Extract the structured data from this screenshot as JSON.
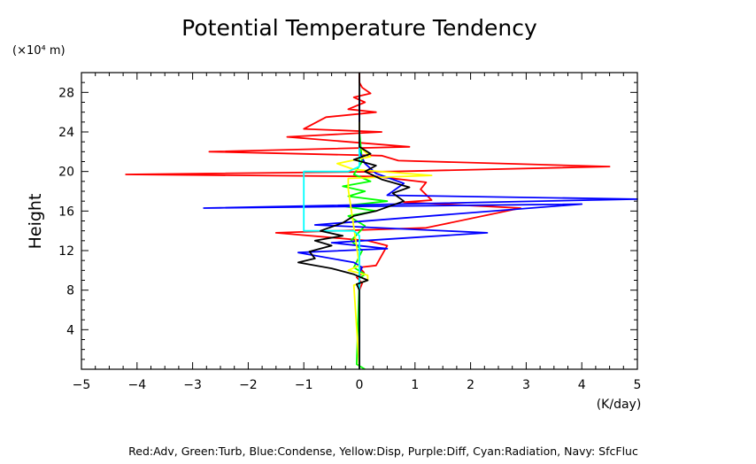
{
  "chart_data": {
    "type": "line",
    "title": "Potential Temperature Tendency",
    "xlabel": "(K/day)",
    "ylabel": "Height",
    "y_unit": "(×10⁴ m)",
    "xlim": [
      -5,
      5
    ],
    "ylim": [
      0,
      30
    ],
    "x_ticks": [
      -5,
      -4,
      -3,
      -2,
      -1,
      0,
      1,
      2,
      3,
      4,
      5
    ],
    "y_ticks": [
      4,
      8,
      12,
      16,
      20,
      24,
      28
    ],
    "x_tick_labels": [
      "−5",
      "−4",
      "−3",
      "−2",
      "−1",
      "0",
      "1",
      "2",
      "3",
      "4",
      "5"
    ],
    "y_tick_labels": [
      "4",
      "8",
      "12",
      "16",
      "20",
      "24",
      "28"
    ],
    "legend_text": "Red:Adv, Green:Turb, Blue:Condense, Yellow:Disp, Purple:Diff, Cyan:Radiation, Navy: SfcFluc",
    "series": [
      {
        "color": "#ff0000",
        "x": [
          0,
          0,
          0.05,
          -0.05,
          0.08,
          0,
          0.3,
          0.5,
          0.15,
          -1.5,
          1.2,
          2.9,
          0.8,
          1.3,
          1.1,
          1.2,
          0.3,
          -4.2,
          0.6,
          4.5,
          0.7,
          0.4,
          -2.7,
          0.9,
          -1.3,
          0.4,
          -1.0,
          -0.6,
          0.3,
          -0.2,
          0.1,
          -0.1,
          0.2,
          0.05,
          0,
          0
        ],
        "y": [
          0.5,
          8.0,
          8.7,
          9.3,
          9.8,
          10.3,
          10.5,
          12.5,
          13.0,
          13.8,
          14.3,
          16.3,
          16.9,
          17.1,
          18.2,
          18.9,
          19.5,
          19.7,
          20.0,
          20.5,
          21.1,
          21.6,
          22.0,
          22.5,
          23.5,
          24.0,
          24.3,
          25.5,
          26.0,
          26.3,
          27.0,
          27.5,
          27.9,
          28.5,
          29.0,
          30.0
        ]
      },
      {
        "color": "#00ff00",
        "x": [
          0.1,
          -0.05,
          0,
          0.1,
          -0.1,
          0.05,
          -0.15,
          0.1,
          -0.2,
          0.3,
          -0.3,
          0.5,
          -0.2,
          0.1,
          -0.3,
          0.2,
          -0.1,
          0.05,
          0
        ],
        "y": [
          0,
          0.5,
          9.2,
          9.6,
          10.3,
          12.0,
          13.0,
          14.5,
          15.5,
          16.0,
          16.5,
          17.0,
          17.5,
          18.0,
          18.5,
          19.0,
          19.7,
          21.0,
          24.0
        ]
      },
      {
        "color": "#0000ff",
        "x": [
          0,
          0,
          0.05,
          -0.1,
          -1.1,
          0.5,
          -0.5,
          2.3,
          -0.8,
          4.0,
          -2.8,
          5.0,
          0.5,
          0.8,
          0.3,
          0.1,
          0,
          0
        ],
        "y": [
          0,
          9.8,
          10.3,
          10.8,
          11.8,
          12.2,
          12.8,
          13.8,
          14.6,
          16.7,
          16.3,
          17.2,
          17.6,
          18.8,
          19.8,
          20.8,
          22.0,
          27.5
        ]
      },
      {
        "color": "#ffff00",
        "x": [
          0,
          -0.1,
          0.15,
          0.15,
          -0.2,
          0,
          -0.2,
          -0.2,
          1.3,
          -0.1,
          -0.4,
          0.2,
          0,
          0
        ],
        "y": [
          0,
          8.5,
          9.0,
          9.5,
          10.0,
          10.5,
          18.2,
          19.3,
          19.6,
          20.2,
          20.8,
          21.5,
          22.5,
          25.0
        ]
      },
      {
        "color": "#00ffff",
        "x": [
          0,
          0,
          -0.1,
          -1.0,
          -1.0,
          -0.2,
          0,
          0
        ],
        "y": [
          0,
          13.5,
          14.0,
          14.0,
          20.0,
          20.0,
          20.5,
          24.0
        ]
      },
      {
        "color": "#000000",
        "x": [
          0,
          0,
          -0.05,
          0.15,
          -0.1,
          -0.5,
          -1.1,
          -0.8,
          -0.9,
          -0.5,
          -0.8,
          -0.3,
          -0.7,
          -0.3,
          -0.1,
          0.3,
          0.8,
          0.6,
          0.9,
          0.4,
          0.1,
          0.3,
          -0.1,
          0.2,
          0,
          0
        ],
        "y": [
          0,
          8.0,
          8.6,
          9.0,
          9.6,
          10.2,
          10.8,
          11.2,
          11.9,
          12.5,
          13.0,
          13.5,
          14.0,
          14.8,
          15.5,
          16.0,
          17.0,
          17.8,
          18.4,
          19.2,
          20.0,
          20.6,
          21.2,
          21.8,
          22.5,
          30.0
        ]
      }
    ]
  }
}
